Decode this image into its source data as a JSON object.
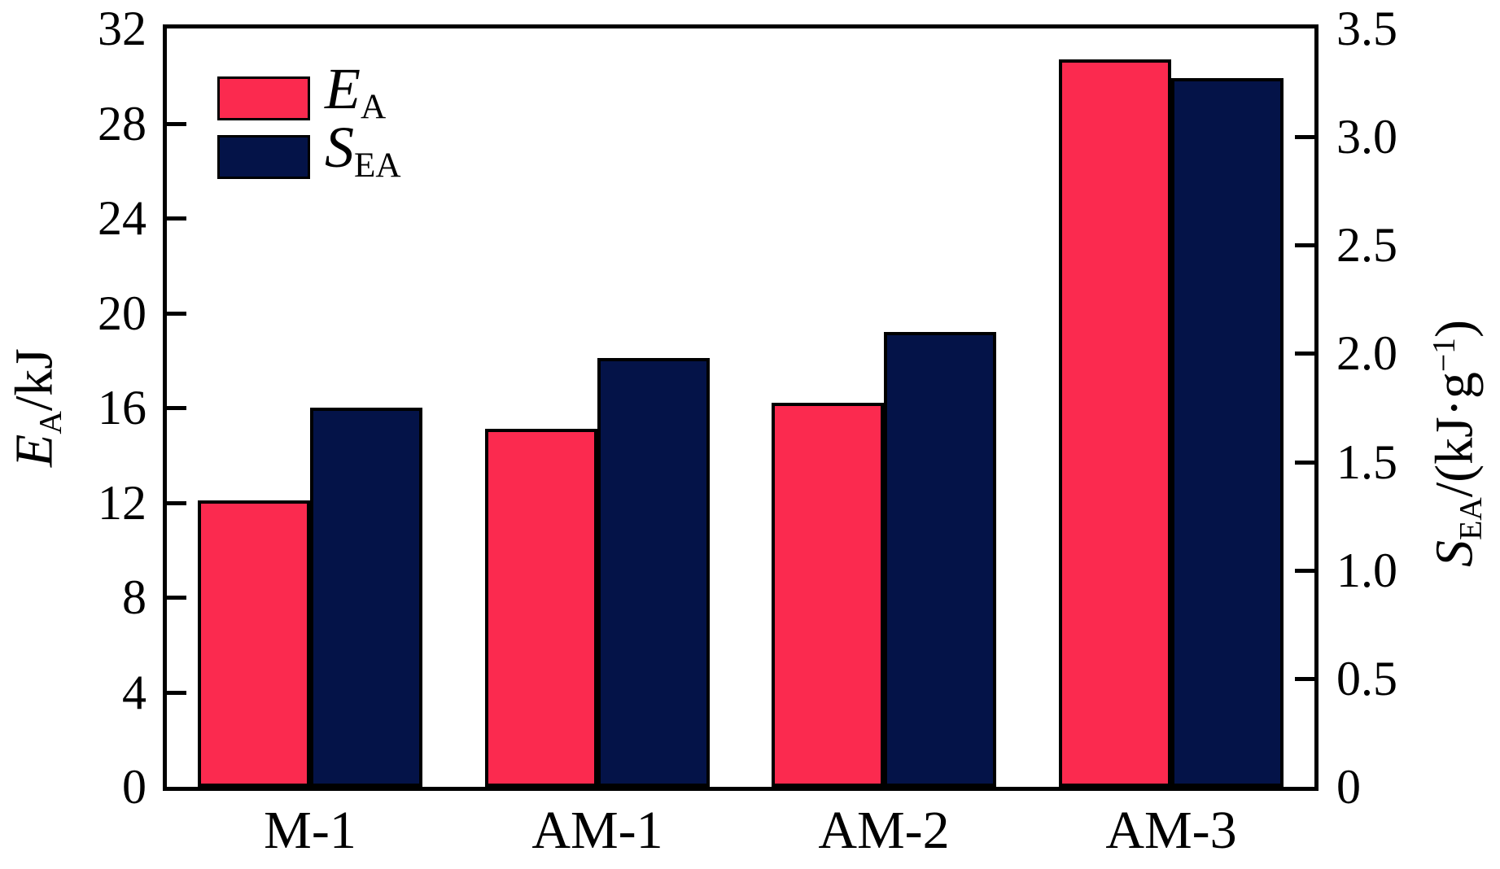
{
  "figure": {
    "background": "#ffffff",
    "frame_color": "#000000"
  },
  "chart_data": {
    "type": "bar",
    "categories": [
      "M-1",
      "AM-1",
      "AM-2",
      "AM-3"
    ],
    "series": [
      {
        "name": "EA",
        "axis": "left",
        "color": "#FB2A4F",
        "values": [
          12.1,
          15.1,
          16.2,
          30.7
        ]
      },
      {
        "name": "SEA",
        "axis": "right",
        "color": "#041348",
        "values": [
          1.75,
          1.98,
          2.1,
          3.27
        ]
      }
    ],
    "left_axis": {
      "min": 0,
      "max": 32,
      "ticks": [
        0,
        4,
        8,
        12,
        16,
        20,
        24,
        28,
        32
      ],
      "tick_labels": [
        "0",
        "4",
        "8",
        "12",
        "16",
        "20",
        "24",
        "28",
        "32"
      ]
    },
    "right_axis": {
      "min": 0,
      "max": 3.5,
      "ticks": [
        0,
        0.5,
        1.0,
        1.5,
        2.0,
        2.5,
        3.0,
        3.5
      ],
      "tick_labels": [
        "0",
        "0.5",
        "1.0",
        "1.5",
        "2.0",
        "2.5",
        "3.0",
        "3.5"
      ]
    },
    "legend": {
      "position": "top-left",
      "entries": [
        {
          "symbol": "E",
          "subscript": "A"
        },
        {
          "symbol": "S",
          "subscript": "EA"
        }
      ]
    },
    "grid": false
  },
  "axis_titles": {
    "left": {
      "symbol": "E",
      "subscript": "A",
      "rest": "/kJ"
    },
    "right": {
      "symbol": "S",
      "subscript": "EA",
      "mid": "/(kJ·g",
      "sup": "−1",
      "end": ")"
    }
  }
}
